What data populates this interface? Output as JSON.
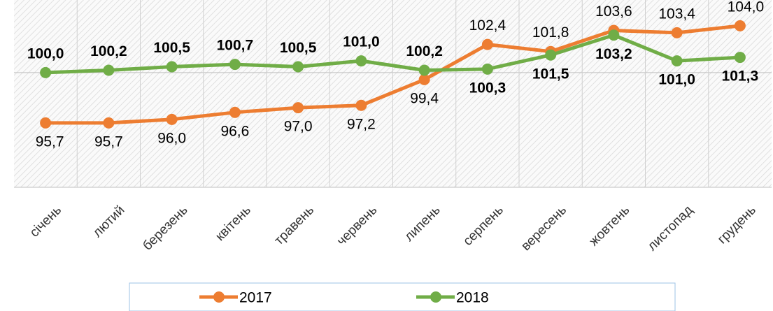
{
  "chart_data": {
    "type": "line",
    "categories": [
      "січень",
      "лютий",
      "березень",
      "квітень",
      "травень",
      "червень",
      "липень",
      "серпень",
      "вересень",
      "жовтень",
      "листопад",
      "грудень"
    ],
    "series": [
      {
        "name": "2017",
        "color": "#ed7d31",
        "values": [
          95.7,
          95.7,
          96.0,
          96.6,
          97.0,
          97.2,
          99.4,
          102.4,
          101.8,
          103.6,
          103.4,
          104.0
        ],
        "value_labels": [
          "95,7",
          "95,7",
          "96,0",
          "96,6",
          "97,0",
          "97,2",
          "99,4",
          "102,4",
          "101,8",
          "103,6",
          "103,4",
          "104,0"
        ]
      },
      {
        "name": "2018",
        "color": "#70ad47",
        "values": [
          100.0,
          100.2,
          100.5,
          100.7,
          100.5,
          101.0,
          100.2,
          100.3,
          101.5,
          103.2,
          101.0,
          101.3
        ],
        "value_labels": [
          "100,0",
          "100,2",
          "100,5",
          "100,7",
          "100,5",
          "101,0",
          "100,2",
          "100,3",
          "101,5",
          "103,2",
          "101,0",
          "101,3"
        ]
      }
    ],
    "ylim": [
      90.2,
      106.2
    ],
    "yticks": [
      90.2,
      100
    ],
    "grid": true,
    "legend": "bottom"
  }
}
